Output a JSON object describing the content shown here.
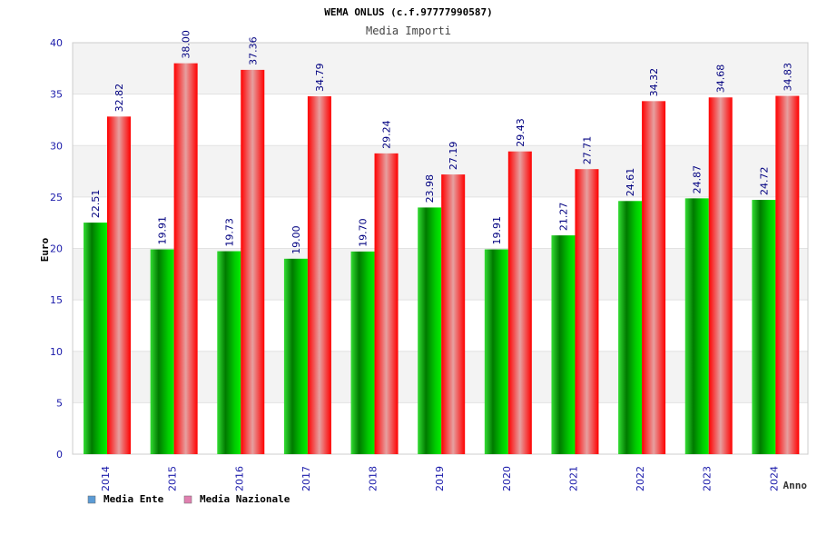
{
  "chart_data": {
    "type": "bar",
    "title": "WEMA ONLUS (c.f.97777990587)",
    "subtitle": "Media Importi",
    "xlabel": "Anno",
    "ylabel": "Euro",
    "ylim": [
      0,
      40
    ],
    "yticks": [
      "0",
      "5",
      "10",
      "15",
      "20",
      "25",
      "30",
      "35",
      "40"
    ],
    "grid": true,
    "legend_position": "bottom-left",
    "categories": [
      "2014",
      "2015",
      "2016",
      "2017",
      "2018",
      "2019",
      "2020",
      "2021",
      "2022",
      "2023",
      "2024"
    ],
    "series": [
      {
        "name": "Media Ente",
        "values": [
          22.51,
          19.91,
          19.73,
          19.0,
          19.7,
          23.98,
          19.91,
          21.27,
          24.61,
          24.87,
          24.72
        ],
        "labels": [
          "22.51",
          "19.91",
          "19.73",
          "19.00",
          "19.70",
          "23.98",
          "19.91",
          "21.27",
          "24.61",
          "24.87",
          "24.72"
        ],
        "color": "#00cc00",
        "legend_color": "#5b9bd5"
      },
      {
        "name": "Media Nazionale",
        "values": [
          32.82,
          38.0,
          37.36,
          34.79,
          29.24,
          27.19,
          29.43,
          27.71,
          34.32,
          34.68,
          34.83
        ],
        "labels": [
          "32.82",
          "38.00",
          "37.36",
          "34.79",
          "29.24",
          "27.19",
          "29.43",
          "27.71",
          "34.32",
          "34.68",
          "34.83"
        ],
        "color": "#ff0000",
        "legend_color": "#e080b0"
      }
    ]
  }
}
